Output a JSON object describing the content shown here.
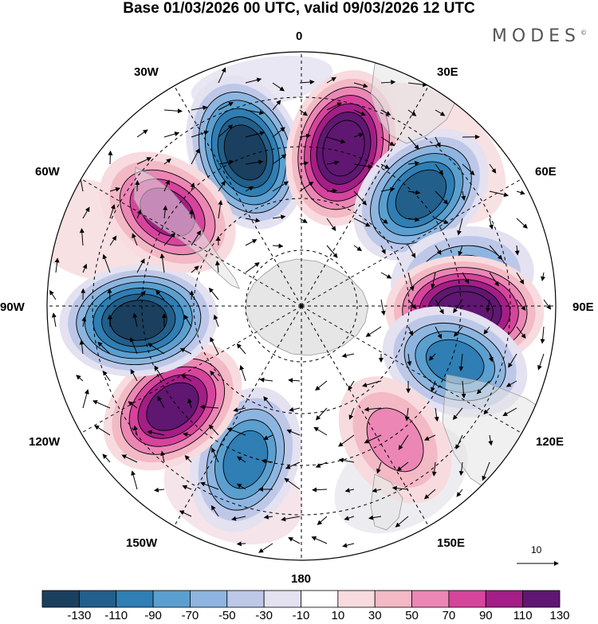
{
  "title": "Base 01/03/2026 00 UTC, valid 09/03/2026 12 UTC",
  "brand": "MODES",
  "brand_mark": "©",
  "longitude_labels": [
    "0",
    "30E",
    "60E",
    "90E",
    "120E",
    "150E",
    "180",
    "150W",
    "120W",
    "90W",
    "60W",
    "30W"
  ],
  "colorbar": {
    "tick_labels": [
      "-130",
      "-110",
      "-90",
      "-70",
      "-50",
      "-30",
      "-10",
      "10",
      "30",
      "50",
      "70",
      "90",
      "110",
      "130"
    ],
    "colors": [
      "#1b3f5f",
      "#225f8a",
      "#2f7eb4",
      "#5b9fcf",
      "#8db5e0",
      "#bdc8e8",
      "#e4e1f1",
      "#ffffff",
      "#f8dbde",
      "#f3b9c5",
      "#ec86b5",
      "#d6449c",
      "#a31e86",
      "#5f1771"
    ]
  },
  "reference_vector_label": "10",
  "map_data": {
    "projection": "polar stereographic, south pole",
    "anomaly_centers": [
      {
        "lon_deg": -20,
        "value": -130,
        "label": "negative"
      },
      {
        "lon_deg": 15,
        "value": 130,
        "label": "positive"
      },
      {
        "lon_deg": 47,
        "value": -110,
        "label": "negative"
      },
      {
        "lon_deg": 80,
        "value": -70,
        "label": "negative"
      },
      {
        "lon_deg": 92,
        "value": 130,
        "label": "positive"
      },
      {
        "lon_deg": 110,
        "value": -90,
        "label": "negative"
      },
      {
        "lon_deg": 145,
        "value": 50,
        "label": "positive"
      },
      {
        "lon_deg": -160,
        "value": -90,
        "label": "negative"
      },
      {
        "lon_deg": -128,
        "value": 110,
        "label": "positive"
      },
      {
        "lon_deg": -95,
        "value": -130,
        "label": "negative"
      },
      {
        "lon_deg": -55,
        "value": 90,
        "label": "positive"
      }
    ]
  }
}
